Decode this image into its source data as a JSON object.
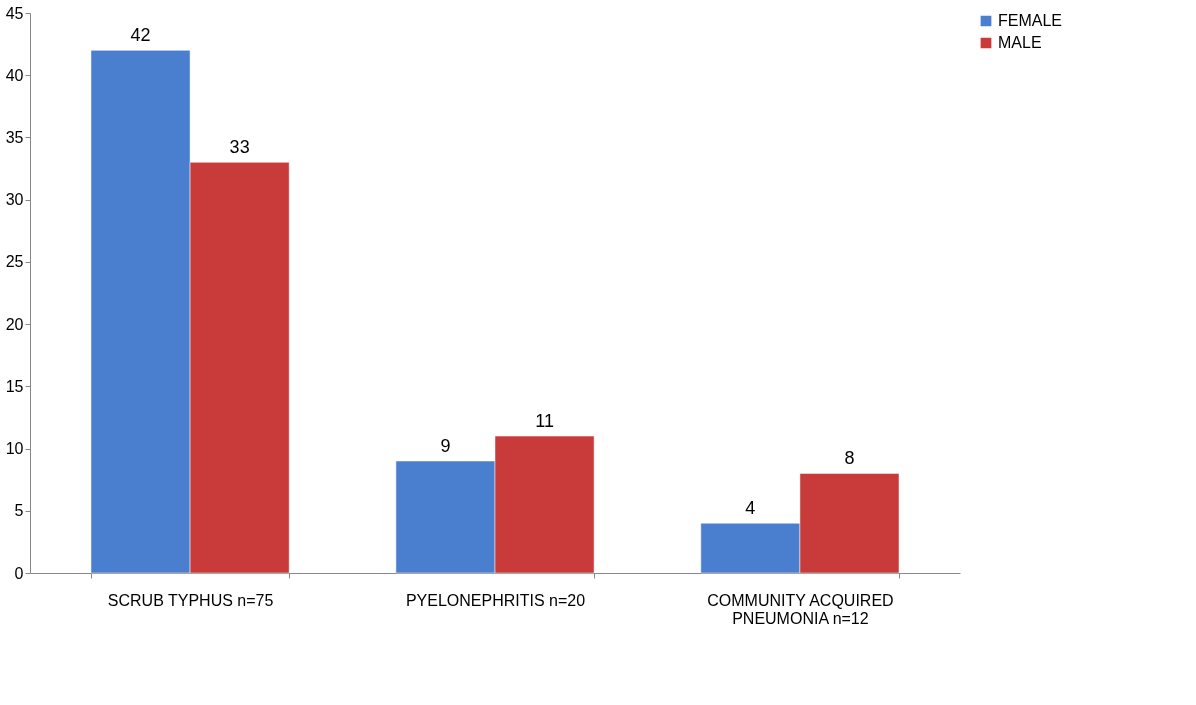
{
  "chart_data": {
    "type": "bar",
    "categories": [
      "SCRUB TYPHUS n=75",
      "PYELONEPHRITIS n=20",
      "COMMUNITY ACQUIRED\nPNEUMONIA n=12"
    ],
    "series": [
      {
        "name": "FEMALE",
        "color": "#4a7fd0",
        "values": [
          42,
          9,
          4
        ]
      },
      {
        "name": "MALE",
        "color": "#c93a3a",
        "values": [
          33,
          11,
          8
        ]
      }
    ],
    "ylim": [
      0,
      45
    ],
    "yticks": [
      0,
      5,
      10,
      15,
      20,
      25,
      30,
      35,
      40,
      45
    ],
    "grid": false,
    "legend": "right",
    "data_labels": true
  }
}
